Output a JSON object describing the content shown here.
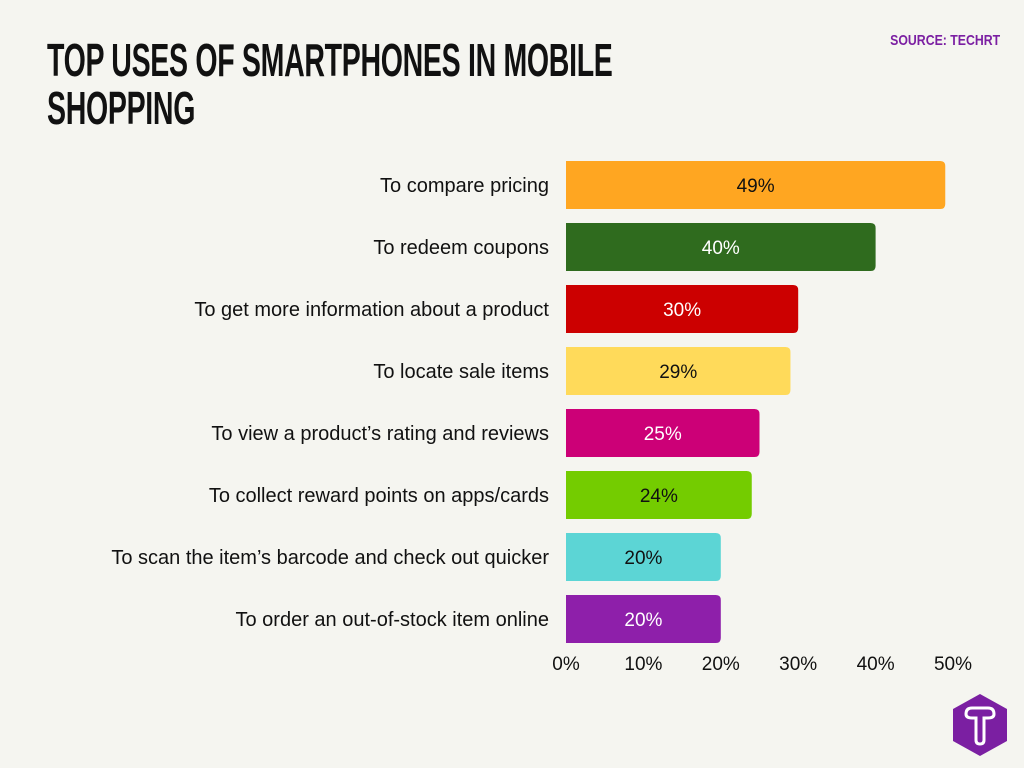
{
  "chart_data": {
    "type": "bar",
    "orientation": "horizontal",
    "title": "TOP USES OF SMARTPHONES IN MOBILE SHOPPING",
    "source": "SOURCE: TECHRT",
    "categories": [
      "To compare pricing",
      "To redeem coupons",
      "To get more information about a product",
      "To locate sale items",
      "To view a product’s rating and reviews",
      "To collect reward points on apps/cards",
      "To scan the item’s barcode and check out quicker",
      "To order an out-of-stock item online"
    ],
    "values": [
      49,
      40,
      30,
      29,
      25,
      24,
      20,
      20
    ],
    "data_labels": [
      "49%",
      "40%",
      "30%",
      "29%",
      "25%",
      "24%",
      "20%",
      "20%"
    ],
    "colors": [
      "#FFA621",
      "#2F6B1E",
      "#CC0000",
      "#FFDA5A",
      "#CC0077",
      "#74CC00",
      "#5CD5D5",
      "#8E1FAA"
    ],
    "label_colors": [
      "#111111",
      "#ffffff",
      "#ffffff",
      "#111111",
      "#ffffff",
      "#111111",
      "#111111",
      "#ffffff"
    ],
    "xlim": [
      0,
      50
    ],
    "x_ticks": [
      "0%",
      "10%",
      "20%",
      "30%",
      "40%",
      "50%"
    ],
    "grid": false,
    "legend": "none"
  },
  "logo": {
    "letter": "T",
    "color": "#7B1FA2"
  }
}
